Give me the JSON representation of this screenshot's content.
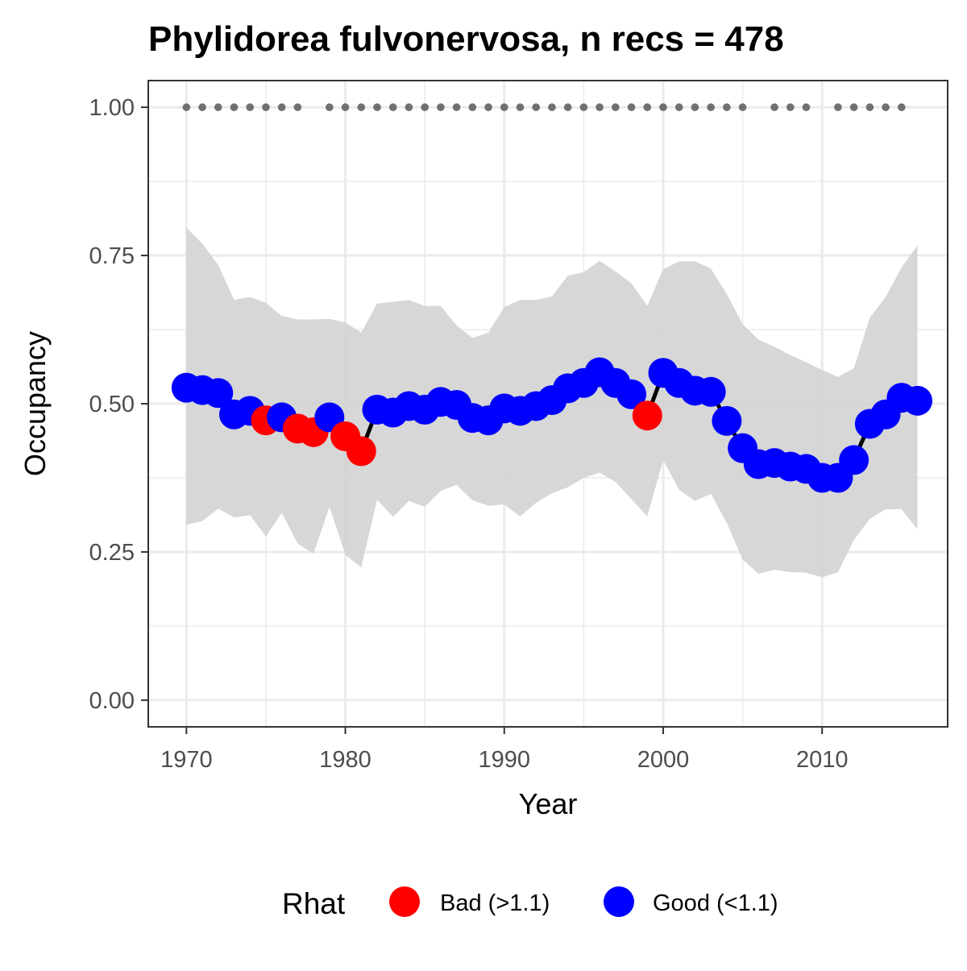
{
  "chart_data": {
    "type": "line",
    "title": "Phylidorea fulvonervosa, n recs = 478",
    "xlabel": "Year",
    "ylabel": "Occupancy",
    "xlim": [
      1967.6,
      2017.9
    ],
    "ylim": [
      -0.045,
      1.045
    ],
    "x_ticks": [
      1970,
      1980,
      1990,
      2000,
      2010
    ],
    "y_ticks": [
      0.0,
      0.25,
      0.5,
      0.75,
      1.0
    ],
    "x_tick_labels": [
      "1970",
      "1980",
      "1990",
      "2000",
      "2010"
    ],
    "y_tick_labels": [
      "0.00",
      "0.25",
      "0.50",
      "0.75",
      "1.00"
    ],
    "grid": true,
    "legend": {
      "position": "bottom",
      "title": "Rhat",
      "entries": [
        {
          "label": "Bad (>1.1)",
          "color": "#ff0000"
        },
        {
          "label": "Good (<1.1)",
          "color": "#0000ff"
        }
      ]
    },
    "colors": {
      "bad": "#ff0000",
      "good": "#0000ff",
      "line": "#000000",
      "ribbon": "#d3d3d3",
      "record_dots": "#707070",
      "panel_border": "#333333",
      "grid": "#ebebeb"
    },
    "series": [
      {
        "name": "Occupancy",
        "x": [
          1970,
          1971,
          1972,
          1973,
          1974,
          1975,
          1976,
          1977,
          1978,
          1979,
          1980,
          1981,
          1982,
          1983,
          1984,
          1985,
          1986,
          1987,
          1988,
          1989,
          1990,
          1991,
          1992,
          1993,
          1994,
          1995,
          1996,
          1997,
          1998,
          1999,
          2000,
          2001,
          2002,
          2003,
          2004,
          2005,
          2006,
          2007,
          2008,
          2009,
          2010,
          2011,
          2012,
          2013,
          2014,
          2015,
          2016
        ],
        "y": [
          0.527,
          0.523,
          0.518,
          0.482,
          0.488,
          0.472,
          0.477,
          0.458,
          0.452,
          0.477,
          0.445,
          0.42,
          0.49,
          0.485,
          0.496,
          0.49,
          0.503,
          0.498,
          0.476,
          0.472,
          0.492,
          0.488,
          0.496,
          0.506,
          0.526,
          0.535,
          0.553,
          0.535,
          0.516,
          0.48,
          0.552,
          0.535,
          0.522,
          0.52,
          0.471,
          0.425,
          0.398,
          0.4,
          0.394,
          0.39,
          0.375,
          0.375,
          0.405,
          0.466,
          0.482,
          0.51,
          0.505
        ],
        "rhat": [
          "Good",
          "Good",
          "Good",
          "Good",
          "Good",
          "Bad",
          "Good",
          "Bad",
          "Bad",
          "Good",
          "Bad",
          "Bad",
          "Good",
          "Good",
          "Good",
          "Good",
          "Good",
          "Good",
          "Good",
          "Good",
          "Good",
          "Good",
          "Good",
          "Good",
          "Good",
          "Good",
          "Good",
          "Good",
          "Good",
          "Bad",
          "Good",
          "Good",
          "Good",
          "Good",
          "Good",
          "Good",
          "Good",
          "Good",
          "Good",
          "Good",
          "Good",
          "Good",
          "Good",
          "Good",
          "Good",
          "Good",
          "Good"
        ]
      },
      {
        "name": "Upper credible interval",
        "x": [
          1970,
          1971,
          1972,
          1973,
          1974,
          1975,
          1976,
          1977,
          1978,
          1979,
          1980,
          1981,
          1982,
          1983,
          1984,
          1985,
          1986,
          1987,
          1988,
          1989,
          1990,
          1991,
          1992,
          1993,
          1994,
          1995,
          1996,
          1997,
          1998,
          1999,
          2000,
          2001,
          2002,
          2003,
          2004,
          2005,
          2006,
          2007,
          2008,
          2009,
          2010,
          2011,
          2012,
          2013,
          2014,
          2015,
          2016
        ],
        "y": [
          0.797,
          0.77,
          0.734,
          0.675,
          0.68,
          0.67,
          0.648,
          0.642,
          0.642,
          0.643,
          0.637,
          0.62,
          0.669,
          0.672,
          0.675,
          0.665,
          0.665,
          0.632,
          0.611,
          0.62,
          0.663,
          0.675,
          0.675,
          0.681,
          0.716,
          0.722,
          0.741,
          0.723,
          0.703,
          0.665,
          0.727,
          0.74,
          0.74,
          0.728,
          0.685,
          0.634,
          0.608,
          0.596,
          0.582,
          0.57,
          0.557,
          0.545,
          0.56,
          0.645,
          0.68,
          0.73,
          0.767
        ]
      },
      {
        "name": "Lower credible interval",
        "x": [
          1970,
          1971,
          1972,
          1973,
          1974,
          1975,
          1976,
          1977,
          1978,
          1979,
          1980,
          1981,
          1982,
          1983,
          1984,
          1985,
          1986,
          1987,
          1988,
          1989,
          1990,
          1991,
          1992,
          1993,
          1994,
          1995,
          1996,
          1997,
          1998,
          1999,
          2000,
          2001,
          2002,
          2003,
          2004,
          2005,
          2006,
          2007,
          2008,
          2009,
          2010,
          2011,
          2012,
          2013,
          2014,
          2015,
          2016
        ],
        "y": [
          0.296,
          0.302,
          0.323,
          0.308,
          0.312,
          0.276,
          0.316,
          0.264,
          0.247,
          0.326,
          0.245,
          0.224,
          0.338,
          0.309,
          0.336,
          0.326,
          0.353,
          0.363,
          0.337,
          0.328,
          0.33,
          0.31,
          0.333,
          0.349,
          0.359,
          0.375,
          0.384,
          0.368,
          0.339,
          0.31,
          0.405,
          0.355,
          0.336,
          0.348,
          0.299,
          0.237,
          0.213,
          0.22,
          0.216,
          0.215,
          0.207,
          0.216,
          0.27,
          0.306,
          0.322,
          0.322,
          0.288
        ]
      },
      {
        "name": "Years with records",
        "x": [
          1970,
          1971,
          1972,
          1973,
          1974,
          1975,
          1976,
          1977,
          1979,
          1980,
          1981,
          1982,
          1983,
          1984,
          1985,
          1986,
          1987,
          1988,
          1989,
          1990,
          1991,
          1992,
          1993,
          1994,
          1995,
          1996,
          1997,
          1998,
          1999,
          2000,
          2001,
          2002,
          2003,
          2004,
          2005,
          2007,
          2008,
          2009,
          2011,
          2012,
          2013,
          2014,
          2015
        ],
        "y": [
          1,
          1,
          1,
          1,
          1,
          1,
          1,
          1,
          1,
          1,
          1,
          1,
          1,
          1,
          1,
          1,
          1,
          1,
          1,
          1,
          1,
          1,
          1,
          1,
          1,
          1,
          1,
          1,
          1,
          1,
          1,
          1,
          1,
          1,
          1,
          1,
          1,
          1,
          1,
          1,
          1,
          1,
          1
        ]
      }
    ]
  }
}
